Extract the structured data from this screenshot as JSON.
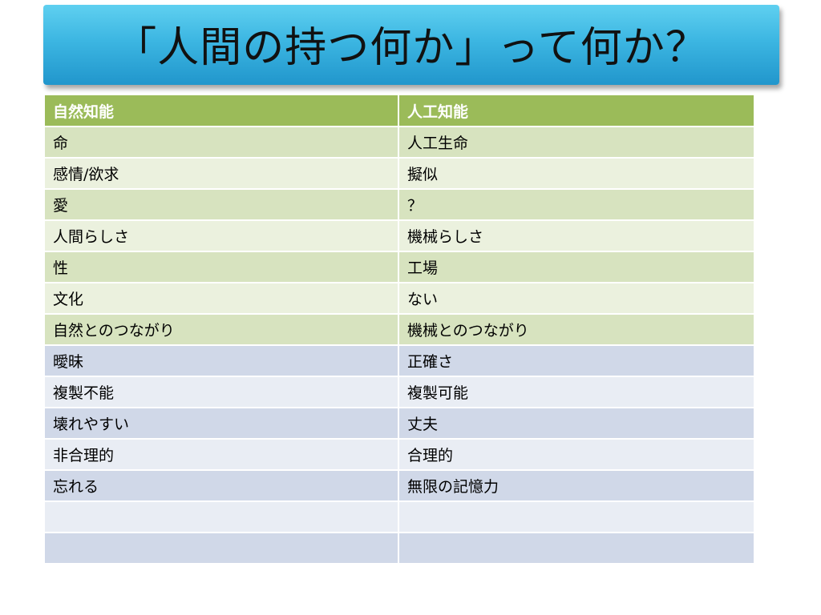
{
  "slide": {
    "title": "「人間の持つ何か」って何か？"
  },
  "table": {
    "headers": [
      "自然知能",
      "人工知能"
    ],
    "rows": [
      {
        "left": "命",
        "right": "人工生命",
        "group": "green"
      },
      {
        "left": "感情/欲求",
        "right": "擬似",
        "group": "green"
      },
      {
        "left": "愛",
        "right": "？",
        "group": "green"
      },
      {
        "left": "人間らしさ",
        "right": "機械らしさ",
        "group": "green"
      },
      {
        "left": "性",
        "right": "工場",
        "group": "green"
      },
      {
        "left": "文化",
        "right": "ない",
        "group": "green"
      },
      {
        "left": "自然とのつながり",
        "right": "機械とのつながり",
        "group": "green"
      },
      {
        "left": "曖昧",
        "right": "正確さ",
        "group": "blue"
      },
      {
        "left": "複製不能",
        "right": "複製可能",
        "group": "blue"
      },
      {
        "left": "壊れやすい",
        "right": "丈夫",
        "group": "blue"
      },
      {
        "left": "非合理的",
        "right": "合理的",
        "group": "blue"
      },
      {
        "left": "忘れる",
        "right": "無限の記憶力",
        "group": "blue"
      },
      {
        "left": "",
        "right": "",
        "group": "blue"
      },
      {
        "left": "",
        "right": "",
        "group": "blue"
      }
    ]
  },
  "colors": {
    "title_banner": "#3cb6e2",
    "header_green": "#9bbb59",
    "row_green_dark": "#d7e3bf",
    "row_green_light": "#ebf1de",
    "row_blue_dark": "#d0d8e8",
    "row_blue_light": "#e9edf4"
  }
}
